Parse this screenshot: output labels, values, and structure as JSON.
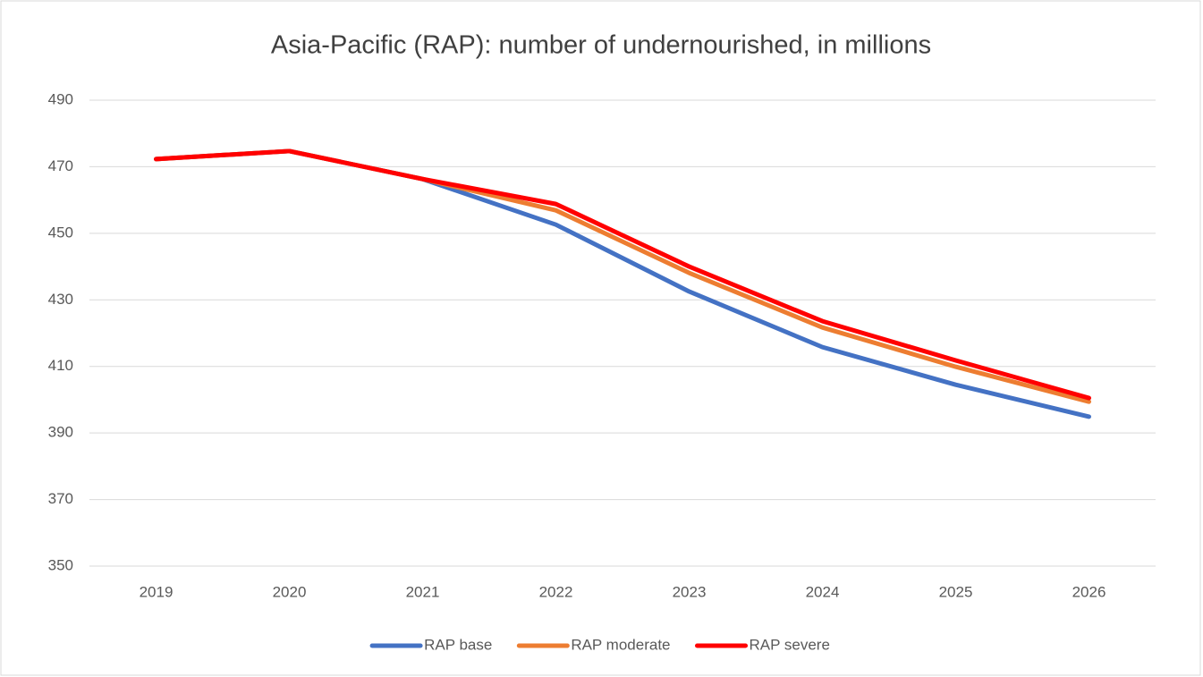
{
  "chart_data": {
    "type": "line",
    "title": "Asia-Pacific (RAP): number of undernourished, in millions",
    "categories": [
      "2019",
      "2020",
      "2021",
      "2022",
      "2023",
      "2024",
      "2025",
      "2026"
    ],
    "series": [
      {
        "name": "RAP base",
        "color": "#4472c4",
        "values": [
          472.3,
          474.7,
          466.3,
          452.6,
          432.5,
          415.8,
          404.5,
          394.9
        ]
      },
      {
        "name": "RAP moderate",
        "color": "#ed7d31",
        "values": [
          472.3,
          474.7,
          466.3,
          456.9,
          438.1,
          421.7,
          409.9,
          399.4
        ]
      },
      {
        "name": "RAP severe",
        "color": "#ff0000",
        "values": [
          472.3,
          474.7,
          466.3,
          458.8,
          440.0,
          423.6,
          411.8,
          400.5
        ]
      }
    ],
    "ylim": [
      350,
      490
    ],
    "yticks": [
      350,
      370,
      390,
      410,
      430,
      450,
      470,
      490
    ],
    "grid": true,
    "legend": "bottom"
  }
}
